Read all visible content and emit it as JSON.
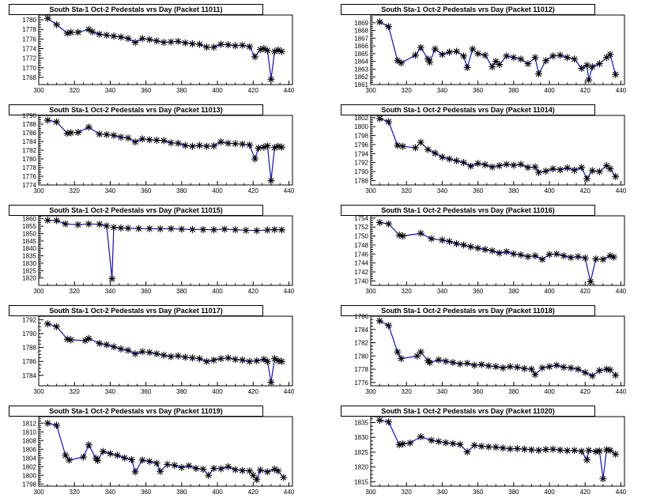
{
  "chart_data": [
    {
      "type": "scatter",
      "title": "South Sta-1 Oct-2 Pedestals vrs Day (Packet 11011)",
      "xlim": [
        300,
        442
      ],
      "xticks": [
        300,
        320,
        340,
        360,
        380,
        400,
        420,
        440
      ],
      "ylim": [
        1766.5,
        1781
      ],
      "yticks": [
        1768,
        1770,
        1772,
        1774,
        1776,
        1778,
        1780
      ],
      "x": [
        305,
        310,
        316,
        318,
        322,
        328,
        330,
        334,
        338,
        342,
        346,
        350,
        354,
        358,
        362,
        366,
        370,
        374,
        378,
        382,
        386,
        390,
        394,
        398,
        402,
        406,
        410,
        414,
        418,
        421,
        424,
        426,
        428,
        430,
        432,
        434,
        436
      ],
      "y": [
        1780.3,
        1779.0,
        1777.2,
        1777.4,
        1777.4,
        1778.0,
        1777.5,
        1777.0,
        1776.8,
        1776.6,
        1776.4,
        1776.1,
        1775.3,
        1776.1,
        1775.9,
        1775.6,
        1775.3,
        1775.4,
        1775.5,
        1775.2,
        1775.0,
        1774.9,
        1774.3,
        1774.3,
        1774.9,
        1774.8,
        1774.6,
        1774.7,
        1774.4,
        1772.3,
        1773.8,
        1774.0,
        1773.6,
        1767.6,
        1773.4,
        1773.7,
        1773.4
      ]
    },
    {
      "type": "scatter",
      "title": "South Sta-1 Oct-2 Pedestals vrs Day (Packet 11012)",
      "xlim": [
        300,
        442
      ],
      "xticks": [
        300,
        320,
        340,
        360,
        380,
        400,
        420,
        440
      ],
      "ylim": [
        1861,
        1870
      ],
      "yticks": [
        1861,
        1862,
        1863,
        1864,
        1865,
        1866,
        1867,
        1868,
        1869
      ],
      "x": [
        305,
        310,
        315,
        317,
        325,
        328,
        332,
        333,
        336,
        340,
        344,
        348,
        352,
        354,
        357,
        360,
        364,
        368,
        370,
        372,
        376,
        380,
        384,
        388,
        392,
        394,
        398,
        402,
        406,
        410,
        414,
        418,
        421,
        422,
        424,
        428,
        432,
        434,
        437
      ],
      "y": [
        1869.1,
        1868.5,
        1864.1,
        1863.8,
        1864.8,
        1865.8,
        1864.3,
        1863.9,
        1865.6,
        1864.9,
        1865.2,
        1865.3,
        1864.7,
        1863.2,
        1865.6,
        1865.0,
        1864.8,
        1863.3,
        1864.0,
        1863.6,
        1864.7,
        1864.5,
        1864.3,
        1863.7,
        1864.5,
        1862.4,
        1864.1,
        1864.7,
        1864.8,
        1864.5,
        1864.3,
        1863.1,
        1863.5,
        1861.6,
        1863.3,
        1863.7,
        1864.5,
        1864.9,
        1862.3
      ]
    },
    {
      "type": "scatter",
      "title": "South Sta-1 Oct-2 Pedestals vrs Day (Packet 11013)",
      "xlim": [
        300,
        442
      ],
      "xticks": [
        300,
        320,
        340,
        360,
        380,
        400,
        420,
        440
      ],
      "ylim": [
        1774,
        1790
      ],
      "yticks": [
        1774,
        1776,
        1778,
        1780,
        1782,
        1784,
        1786,
        1788,
        1790
      ],
      "x": [
        305,
        310,
        316,
        318,
        322,
        328,
        334,
        338,
        342,
        346,
        350,
        354,
        358,
        362,
        366,
        370,
        374,
        378,
        382,
        386,
        390,
        394,
        398,
        402,
        406,
        410,
        414,
        418,
        421,
        423,
        426,
        428,
        430,
        432,
        434,
        436
      ],
      "y": [
        1788.9,
        1788.5,
        1785.9,
        1786.0,
        1786.1,
        1787.3,
        1785.7,
        1785.6,
        1785.4,
        1785.0,
        1784.8,
        1783.9,
        1784.6,
        1784.4,
        1784.3,
        1784.2,
        1783.7,
        1783.6,
        1783.1,
        1782.9,
        1783.1,
        1782.9,
        1783.0,
        1783.9,
        1783.6,
        1783.5,
        1783.4,
        1783.2,
        1780.0,
        1782.5,
        1782.7,
        1783.0,
        1775.0,
        1782.6,
        1782.9,
        1782.7
      ]
    },
    {
      "type": "scatter",
      "title": "South Sta-1 Oct-2 Pedestals vrs Day (Packet 11014)",
      "xlim": [
        300,
        442
      ],
      "xticks": [
        300,
        320,
        340,
        360,
        380,
        400,
        420,
        440
      ],
      "ylim": [
        1787,
        1802.5
      ],
      "yticks": [
        1788,
        1790,
        1792,
        1794,
        1796,
        1798,
        1800,
        1802
      ],
      "x": [
        305,
        310,
        315,
        318,
        325,
        328,
        332,
        336,
        340,
        344,
        348,
        352,
        356,
        360,
        364,
        368,
        372,
        376,
        380,
        384,
        388,
        392,
        394,
        398,
        402,
        406,
        410,
        414,
        418,
        421,
        424,
        428,
        432,
        434,
        437
      ],
      "y": [
        1801.8,
        1801.1,
        1795.8,
        1795.6,
        1795.3,
        1796.5,
        1794.9,
        1794.1,
        1793.2,
        1792.8,
        1792.4,
        1792.0,
        1791.2,
        1791.8,
        1791.5,
        1791.0,
        1791.3,
        1791.6,
        1791.4,
        1791.6,
        1790.9,
        1791.0,
        1789.8,
        1790.1,
        1790.6,
        1790.4,
        1790.8,
        1790.3,
        1790.9,
        1788.4,
        1790.2,
        1790.0,
        1791.3,
        1790.6,
        1788.9
      ]
    },
    {
      "type": "scatter",
      "title": "South Sta-1 Oct-2 Pedestals vrs Day (Packet 11015)",
      "xlim": [
        300,
        442
      ],
      "xticks": [
        300,
        320,
        340,
        360,
        380,
        400,
        420,
        440
      ],
      "ylim": [
        1815,
        1862
      ],
      "yticks": [
        1820,
        1825,
        1830,
        1835,
        1840,
        1845,
        1850,
        1855,
        1860
      ],
      "x": [
        305,
        310,
        315,
        322,
        328,
        334,
        338,
        341,
        342,
        346,
        350,
        356,
        362,
        368,
        374,
        380,
        386,
        392,
        398,
        404,
        410,
        416,
        422,
        428,
        432,
        436
      ],
      "y": [
        1859.0,
        1858.8,
        1856.5,
        1856.0,
        1856.5,
        1856.3,
        1855.2,
        1819.5,
        1854.2,
        1853.8,
        1853.6,
        1853.4,
        1853.3,
        1853.2,
        1853.3,
        1853.0,
        1852.8,
        1852.7,
        1852.6,
        1853.0,
        1852.6,
        1852.2,
        1852.0,
        1852.4,
        1852.7,
        1852.5
      ]
    },
    {
      "type": "scatter",
      "title": "South Sta-1 Oct-2 Pedestals vrs Day (Packet 11016)",
      "xlim": [
        300,
        442
      ],
      "xticks": [
        300,
        320,
        340,
        360,
        380,
        400,
        420,
        440
      ],
      "ylim": [
        1739,
        1754.5
      ],
      "yticks": [
        1740,
        1742,
        1744,
        1746,
        1748,
        1750,
        1752,
        1754
      ],
      "x": [
        305,
        310,
        316,
        318,
        328,
        334,
        340,
        344,
        348,
        352,
        356,
        360,
        364,
        368,
        372,
        376,
        380,
        384,
        388,
        392,
        396,
        400,
        404,
        408,
        412,
        416,
        420,
        423,
        426,
        430,
        434,
        436
      ],
      "y": [
        1753.0,
        1752.7,
        1750.2,
        1750.0,
        1750.6,
        1749.4,
        1749.1,
        1748.8,
        1748.3,
        1748.0,
        1747.6,
        1747.3,
        1747.0,
        1746.7,
        1746.2,
        1746.5,
        1746.0,
        1745.8,
        1745.4,
        1745.6,
        1744.8,
        1745.9,
        1746.0,
        1745.6,
        1745.2,
        1745.4,
        1745.1,
        1739.8,
        1744.9,
        1744.8,
        1745.6,
        1745.3
      ]
    },
    {
      "type": "scatter",
      "title": "South Sta-1 Oct-2 Pedestals vrs Day (Packet 11017)",
      "xlim": [
        300,
        442
      ],
      "xticks": [
        300,
        320,
        340,
        360,
        380,
        400,
        420,
        440
      ],
      "ylim": [
        1782.5,
        1792.5
      ],
      "yticks": [
        1784,
        1786,
        1788,
        1790,
        1792
      ],
      "x": [
        305,
        310,
        316,
        318,
        326,
        328,
        334,
        338,
        342,
        346,
        350,
        354,
        358,
        362,
        366,
        370,
        374,
        378,
        382,
        386,
        390,
        394,
        398,
        402,
        406,
        410,
        414,
        418,
        422,
        426,
        428,
        430,
        432,
        434,
        436
      ],
      "y": [
        1791.4,
        1791.0,
        1789.2,
        1789.1,
        1789.0,
        1789.3,
        1788.6,
        1788.4,
        1788.1,
        1787.8,
        1787.6,
        1787.1,
        1787.4,
        1787.3,
        1787.1,
        1786.9,
        1786.7,
        1786.8,
        1786.6,
        1786.5,
        1786.4,
        1786.0,
        1786.2,
        1786.4,
        1786.5,
        1786.3,
        1786.2,
        1786.0,
        1786.1,
        1786.3,
        1786.0,
        1783.0,
        1786.4,
        1786.1,
        1786.0
      ]
    },
    {
      "type": "scatter",
      "title": "South Sta-1 Oct-2 Pedestals vrs Day (Packet 11018)",
      "xlim": [
        300,
        442
      ],
      "xticks": [
        300,
        320,
        340,
        360,
        380,
        400,
        420,
        440
      ],
      "ylim": [
        1775.5,
        1786
      ],
      "yticks": [
        1776,
        1778,
        1780,
        1782,
        1784,
        1786
      ],
      "x": [
        305,
        310,
        315,
        317,
        326,
        328,
        332,
        333,
        338,
        342,
        346,
        350,
        354,
        358,
        362,
        366,
        370,
        374,
        378,
        382,
        386,
        390,
        392,
        396,
        400,
        404,
        408,
        412,
        416,
        420,
        424,
        428,
        432,
        434,
        437
      ],
      "y": [
        1785.3,
        1784.6,
        1780.6,
        1779.6,
        1780.0,
        1780.6,
        1779.3,
        1779.0,
        1779.4,
        1779.2,
        1779.0,
        1778.8,
        1778.9,
        1778.6,
        1778.7,
        1778.5,
        1778.4,
        1778.2,
        1778.4,
        1778.3,
        1778.1,
        1778.0,
        1777.2,
        1778.2,
        1778.4,
        1778.6,
        1778.3,
        1778.2,
        1778.0,
        1777.5,
        1777.0,
        1777.8,
        1778.0,
        1777.9,
        1777.1
      ]
    },
    {
      "type": "scatter",
      "title": "South Sta-1 Oct-2 Pedestals vrs Day (Packet 11019)",
      "xlim": [
        300,
        442
      ],
      "xticks": [
        300,
        320,
        340,
        360,
        380,
        400,
        420,
        440
      ],
      "ylim": [
        1797.5,
        1813.5
      ],
      "yticks": [
        1798,
        1800,
        1802,
        1804,
        1806,
        1808,
        1810,
        1812
      ],
      "x": [
        305,
        310,
        315,
        317,
        325,
        328,
        332,
        333,
        336,
        340,
        344,
        348,
        352,
        354,
        358,
        362,
        366,
        368,
        372,
        376,
        380,
        384,
        388,
        392,
        395,
        398,
        402,
        406,
        410,
        414,
        418,
        420,
        422,
        424,
        428,
        432,
        434,
        437
      ],
      "y": [
        1812.0,
        1811.5,
        1804.6,
        1803.5,
        1804.2,
        1807.0,
        1803.9,
        1803.4,
        1805.5,
        1805.0,
        1804.6,
        1804.0,
        1803.6,
        1800.8,
        1803.5,
        1803.2,
        1802.8,
        1800.9,
        1802.5,
        1802.3,
        1801.8,
        1802.2,
        1801.6,
        1801.4,
        1800.0,
        1801.6,
        1801.5,
        1802.0,
        1801.3,
        1801.1,
        1801.0,
        1800.0,
        1799.0,
        1801.2,
        1800.8,
        1801.4,
        1801.0,
        1799.5
      ]
    },
    {
      "type": "scatter",
      "title": "South Sta-1 Oct-2 Pedestals vrs Day (Packet 11020)",
      "xlim": [
        300,
        442
      ],
      "xticks": [
        300,
        320,
        340,
        360,
        380,
        400,
        420,
        440
      ],
      "ylim": [
        1813.5,
        1837
      ],
      "yticks": [
        1815,
        1820,
        1825,
        1830,
        1835
      ],
      "x": [
        305,
        310,
        316,
        318,
        322,
        328,
        334,
        338,
        342,
        346,
        350,
        354,
        358,
        362,
        366,
        370,
        374,
        378,
        382,
        386,
        390,
        394,
        398,
        402,
        406,
        410,
        414,
        418,
        421,
        422,
        426,
        428,
        430,
        432,
        434,
        437
      ],
      "y": [
        1835.8,
        1835.2,
        1827.5,
        1827.8,
        1828.1,
        1830.2,
        1829.0,
        1828.6,
        1828.2,
        1827.9,
        1827.6,
        1825.1,
        1827.3,
        1827.0,
        1826.8,
        1826.7,
        1826.4,
        1826.1,
        1826.2,
        1826.0,
        1825.8,
        1825.6,
        1825.9,
        1826.0,
        1825.7,
        1825.5,
        1825.6,
        1825.3,
        1822.4,
        1825.6,
        1825.2,
        1825.4,
        1816.0,
        1825.8,
        1825.6,
        1824.3
      ]
    }
  ],
  "colors": {
    "line": "#1010c8",
    "marker": "#000000",
    "axis": "#000000"
  }
}
